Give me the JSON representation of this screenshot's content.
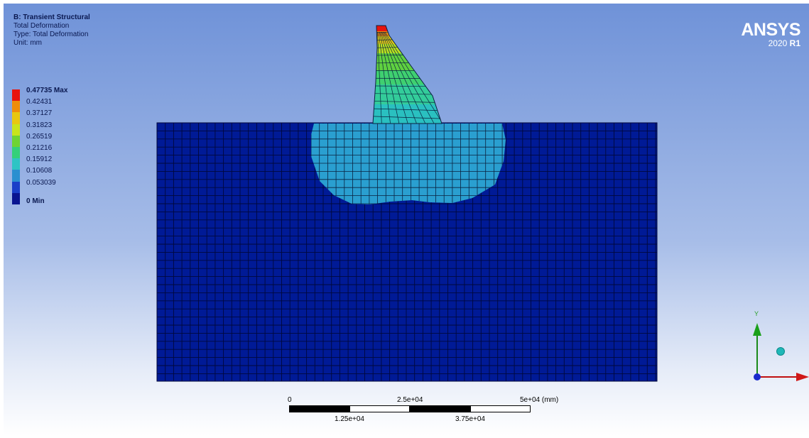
{
  "info": {
    "title": "B: Transient Structural",
    "result": "Total Deformation",
    "type": "Type: Total Deformation",
    "unit": "Unit: mm"
  },
  "legend": {
    "entries": [
      {
        "label": "0.47735 Max",
        "color": "#e8130d"
      },
      {
        "label": "0.42431",
        "color": "#ef8d0b"
      },
      {
        "label": "0.37127",
        "color": "#e8c710"
      },
      {
        "label": "0.31823",
        "color": "#c8e41c"
      },
      {
        "label": "0.26519",
        "color": "#6ed433"
      },
      {
        "label": "0.21216",
        "color": "#34d07a"
      },
      {
        "label": "0.15912",
        "color": "#2ec4c4"
      },
      {
        "label": "0.10608",
        "color": "#2a8fd0"
      },
      {
        "label": "0.053039",
        "color": "#1a3fc8"
      },
      {
        "label": "0 Min",
        "color": "#0a1590"
      }
    ]
  },
  "logo": {
    "brand": "ANSYS",
    "version": "2020",
    "release": "R1"
  },
  "scalebar": {
    "top_labels": [
      "0",
      "2.5e+04",
      "5e+04 (mm)"
    ],
    "bottom_labels": [
      "1.25e+04",
      "3.75e+04"
    ]
  },
  "triad": {
    "y_label": "Y",
    "x_label": "X"
  },
  "colors": {
    "base": "#001a96",
    "base_mesh": "#00083c",
    "contact_zone": "#2a9fd0",
    "mesh_line": "#0a2240"
  }
}
